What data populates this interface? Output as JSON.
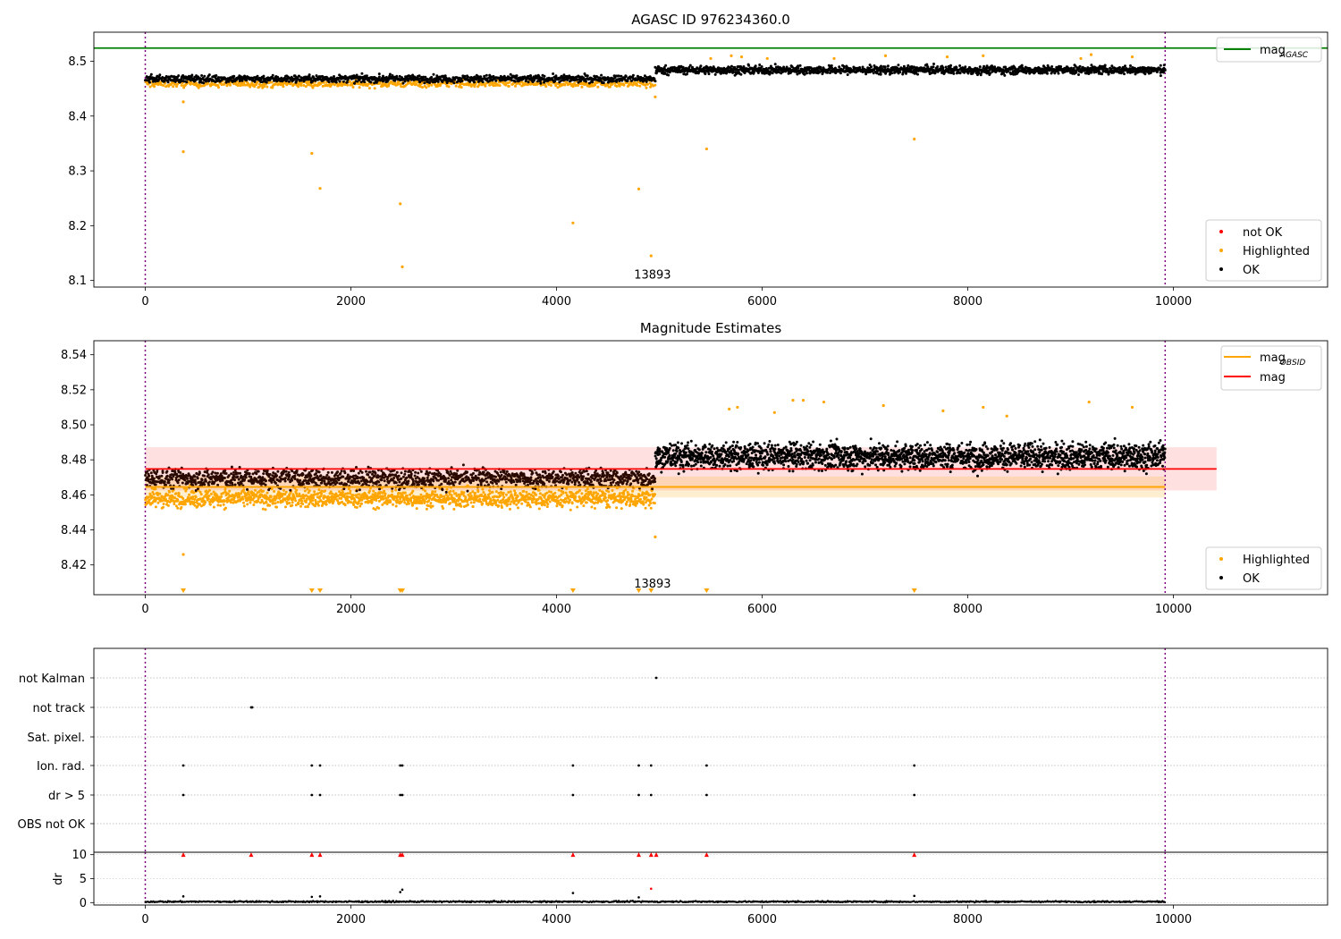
{
  "chart_data": [
    {
      "type": "scatter",
      "title": "AGASC ID 976234360.0",
      "xlim": [
        -500,
        11500
      ],
      "ylim": [
        8.088,
        8.553
      ],
      "xticks": [
        0,
        2000,
        4000,
        6000,
        8000,
        10000
      ],
      "yticks": [
        8.1,
        8.2,
        8.3,
        8.4,
        8.5
      ],
      "yticks_format": 1,
      "grid": false,
      "vlines": [
        0,
        9920
      ],
      "annotations": [
        {
          "text": "13893",
          "x": 4960,
          "y": 8.1
        }
      ],
      "reference_lines": [
        {
          "name": "mag",
          "subscript": "AGASC",
          "y": 8.524,
          "color": "#008000"
        }
      ],
      "series": [
        {
          "name": "not OK",
          "color": "#ff0000",
          "points": []
        },
        {
          "name": "Highlighted",
          "color": "#ffa500",
          "band": {
            "x0": 0,
            "x1": 4960,
            "y": 8.459,
            "spread": 0.007
          },
          "points": [
            [
              370,
              8.335
            ],
            [
              1620,
              8.332
            ],
            [
              1700,
              8.268
            ],
            [
              2480,
              8.24
            ],
            [
              2500,
              8.125
            ],
            [
              4160,
              8.205
            ],
            [
              4800,
              8.267
            ],
            [
              4920,
              8.145
            ],
            [
              370,
              8.426
            ],
            [
              5460,
              8.34
            ],
            [
              7480,
              8.358
            ],
            [
              4960,
              8.435
            ]
          ],
          "scatter_high": [
            [
              5500,
              8.505
            ],
            [
              5700,
              8.51
            ],
            [
              5800,
              8.508
            ],
            [
              6050,
              8.505
            ],
            [
              6700,
              8.505
            ],
            [
              7200,
              8.51
            ],
            [
              7800,
              8.508
            ],
            [
              8150,
              8.51
            ],
            [
              9100,
              8.505
            ],
            [
              9600,
              8.508
            ],
            [
              9200,
              8.512
            ]
          ]
        },
        {
          "name": "OK",
          "color": "#000000",
          "bands": [
            {
              "x0": 0,
              "x1": 4960,
              "y": 8.468,
              "spread": 0.007
            },
            {
              "x0": 4960,
              "x1": 9920,
              "y": 8.484,
              "spread": 0.008
            }
          ]
        }
      ],
      "legend": {
        "lines_position": "upper right",
        "points_position": "lower right"
      }
    },
    {
      "type": "scatter",
      "title": "Magnitude Estimates",
      "xlim": [
        -500,
        11500
      ],
      "ylim": [
        8.403,
        8.548
      ],
      "xticks": [
        0,
        2000,
        4000,
        6000,
        8000,
        10000
      ],
      "yticks": [
        8.42,
        8.44,
        8.46,
        8.48,
        8.5,
        8.52,
        8.54
      ],
      "yticks_format": 2,
      "grid": false,
      "vlines": [
        0,
        9920
      ],
      "annotations": [
        {
          "text": "13893",
          "x": 4960,
          "y": 8.405
        }
      ],
      "reference_lines": [
        {
          "name": "mag",
          "subscript": "OBSID",
          "color": "#ffa500",
          "y": 8.4645,
          "x0": 0,
          "x1": 9920,
          "band": [
            8.4585,
            8.4705
          ],
          "band2": [
            8.4575,
            8.4655
          ]
        },
        {
          "name": "mag",
          "color": "#ff0000",
          "y": 8.4748,
          "x0": 0,
          "x1": 10420,
          "band": [
            8.4625,
            8.4872
          ]
        }
      ],
      "below_markers_x": [
        370,
        1620,
        1700,
        2480,
        2500,
        4160,
        4800,
        4920,
        5460,
        7480
      ],
      "series": [
        {
          "name": "Highlighted",
          "color": "#ffa500",
          "band": {
            "x0": 0,
            "x1": 4960,
            "y": 8.458,
            "spread": 0.0055
          },
          "points": [
            [
              370,
              8.426
            ],
            [
              4960,
              8.436
            ]
          ],
          "scatter_high": [
            [
              5680,
              8.509
            ],
            [
              5760,
              8.51
            ],
            [
              6400,
              8.514
            ],
            [
              6600,
              8.513
            ],
            [
              7180,
              8.511
            ],
            [
              7760,
              8.508
            ],
            [
              8150,
              8.51
            ],
            [
              8380,
              8.505
            ],
            [
              9180,
              8.513
            ],
            [
              9600,
              8.51
            ],
            [
              6120,
              8.507
            ],
            [
              6300,
              8.514
            ]
          ]
        },
        {
          "name": "OK",
          "color": "#000000",
          "bands": [
            {
              "x0": 0,
              "x1": 4960,
              "y": 8.4695,
              "spread": 0.006
            },
            {
              "x0": 4960,
              "x1": 9920,
              "y": 8.482,
              "spread": 0.008
            }
          ]
        }
      ],
      "legend": {
        "lines_position": "upper right",
        "points_position": "lower right"
      }
    },
    {
      "type": "scatter",
      "title": "",
      "xlim": [
        -500,
        11500
      ],
      "xticks": [
        0,
        2000,
        4000,
        6000,
        8000,
        10000
      ],
      "vlines": [
        0,
        9920
      ],
      "flag_categories": [
        "not Kalman",
        "not track",
        "Sat. pixel.",
        "Ion. rad.",
        "dr > 5",
        "OBS not OK"
      ],
      "flags": {
        "not Kalman": [
          4970
        ],
        "not track": [
          1030,
          1040
        ],
        "Sat. pixel.": [],
        "Ion. rad.": [
          370,
          1620,
          1700,
          2480,
          2500,
          4160,
          4800,
          4920,
          5460,
          7480
        ],
        "dr > 5": [
          370,
          1620,
          1700,
          2480,
          2500,
          4160,
          4800,
          4920,
          5460,
          7480
        ],
        "OBS not OK": []
      }
    },
    {
      "type": "scatter",
      "title": "",
      "ylabel": "dr",
      "xlim": [
        -500,
        11500
      ],
      "ylim": [
        -0.5,
        10.5
      ],
      "xticks": [
        0,
        2000,
        4000,
        6000,
        8000,
        10000
      ],
      "yticks": [
        0,
        5,
        10
      ],
      "yticks_format": 0,
      "vlines": [
        0,
        9920
      ],
      "clipped_markers_x": [
        370,
        1030,
        1620,
        1700,
        2480,
        2500,
        4160,
        4800,
        4920,
        4970,
        5460,
        7480
      ],
      "points_black": [
        [
          370,
          1.3
        ],
        [
          1620,
          1.2
        ],
        [
          1700,
          1.3
        ],
        [
          2480,
          2.2
        ],
        [
          2500,
          2.7
        ],
        [
          4160,
          2.0
        ],
        [
          4800,
          1.1
        ],
        [
          7480,
          1.4
        ]
      ],
      "points_red": [
        [
          4920,
          2.9
        ]
      ],
      "band": {
        "x0": 0,
        "x1": 9920,
        "y": 0.2,
        "spread": 0.25
      }
    }
  ]
}
